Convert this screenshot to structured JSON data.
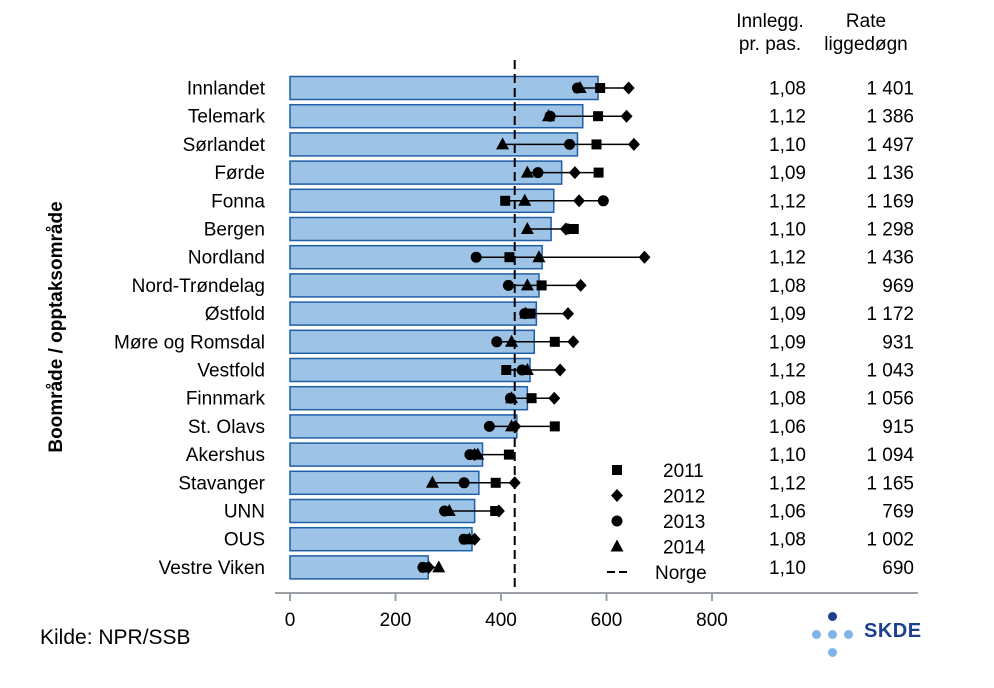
{
  "source": "Kilde: NPR/SSB",
  "logo_text": "SKDE",
  "colors": {
    "bar_fill": "#9dc3e6",
    "bar_stroke": "#1f5fa8",
    "marker": "#000000",
    "logo_dark": "#1d3f8f",
    "logo_light": "#7fb3ea"
  },
  "chart_data": {
    "type": "bar",
    "orientation": "horizontal",
    "ylabel": "Boområde / opptaksområde",
    "xlim": [
      0,
      800
    ],
    "xticks": [
      "0",
      "200",
      "400",
      "600",
      "800"
    ],
    "reference_line": {
      "name": "Norge",
      "value": 426
    },
    "categories": [
      "Innlandet",
      "Telemark",
      "Sørlandet",
      "Førde",
      "Fonna",
      "Bergen",
      "Nordland",
      "Nord-Trøndelag",
      "Østfold",
      "Møre og Romsdal",
      "Vestfold",
      "Finnmark",
      "St. Olavs",
      "Akershus",
      "Stavanger",
      "UNN",
      "OUS",
      "Vestre Viken"
    ],
    "values": [
      584,
      555,
      545,
      515,
      500,
      495,
      478,
      472,
      467,
      463,
      455,
      450,
      430,
      365,
      358,
      350,
      345,
      262
    ],
    "series": [
      {
        "name": "2011",
        "marker": "square",
        "values": [
          588,
          584,
          581,
          585,
          408,
          538,
          416,
          477,
          456,
          502,
          410,
          458,
          502,
          415,
          390,
          389,
          333,
          255
        ]
      },
      {
        "name": "2012",
        "marker": "diamond",
        "values": [
          642,
          638,
          652,
          540,
          548,
          523,
          672,
          551,
          527,
          537,
          512,
          501,
          427,
          350,
          426,
          396,
          350,
          263
        ]
      },
      {
        "name": "2013",
        "marker": "circle",
        "values": [
          545,
          493,
          530,
          470,
          594,
          526,
          353,
          414,
          445,
          392,
          440,
          418,
          378,
          341,
          330,
          293,
          330,
          252
        ]
      },
      {
        "name": "2014",
        "marker": "triangle",
        "values": [
          550,
          490,
          403,
          450,
          445,
          450,
          472,
          450,
          447,
          420,
          450,
          420,
          420,
          356,
          270,
          302,
          340,
          282
        ]
      }
    ],
    "table": {
      "headers": [
        [
          "Innlegg.",
          "pr. pas."
        ],
        [
          "Rate",
          "liggedøgn"
        ]
      ],
      "innlegg": [
        "1,08",
        "1,12",
        "1,10",
        "1,09",
        "1,12",
        "1,10",
        "1,12",
        "1,08",
        "1,09",
        "1,09",
        "1,12",
        "1,08",
        "1,06",
        "1,10",
        "1,12",
        "1,06",
        "1,08",
        "1,10"
      ],
      "rate": [
        "1 401",
        "1 386",
        "1 497",
        "1 136",
        "1 169",
        "1 298",
        "1 436",
        "969",
        "1 172",
        "931",
        "1 043",
        "1 056",
        "915",
        "1 094",
        "1 165",
        "769",
        "1 002",
        "690"
      ]
    },
    "legend": {
      "placement": "bottom-right",
      "entries": [
        "2011",
        "2012",
        "2013",
        "2014",
        "Norge"
      ]
    }
  }
}
